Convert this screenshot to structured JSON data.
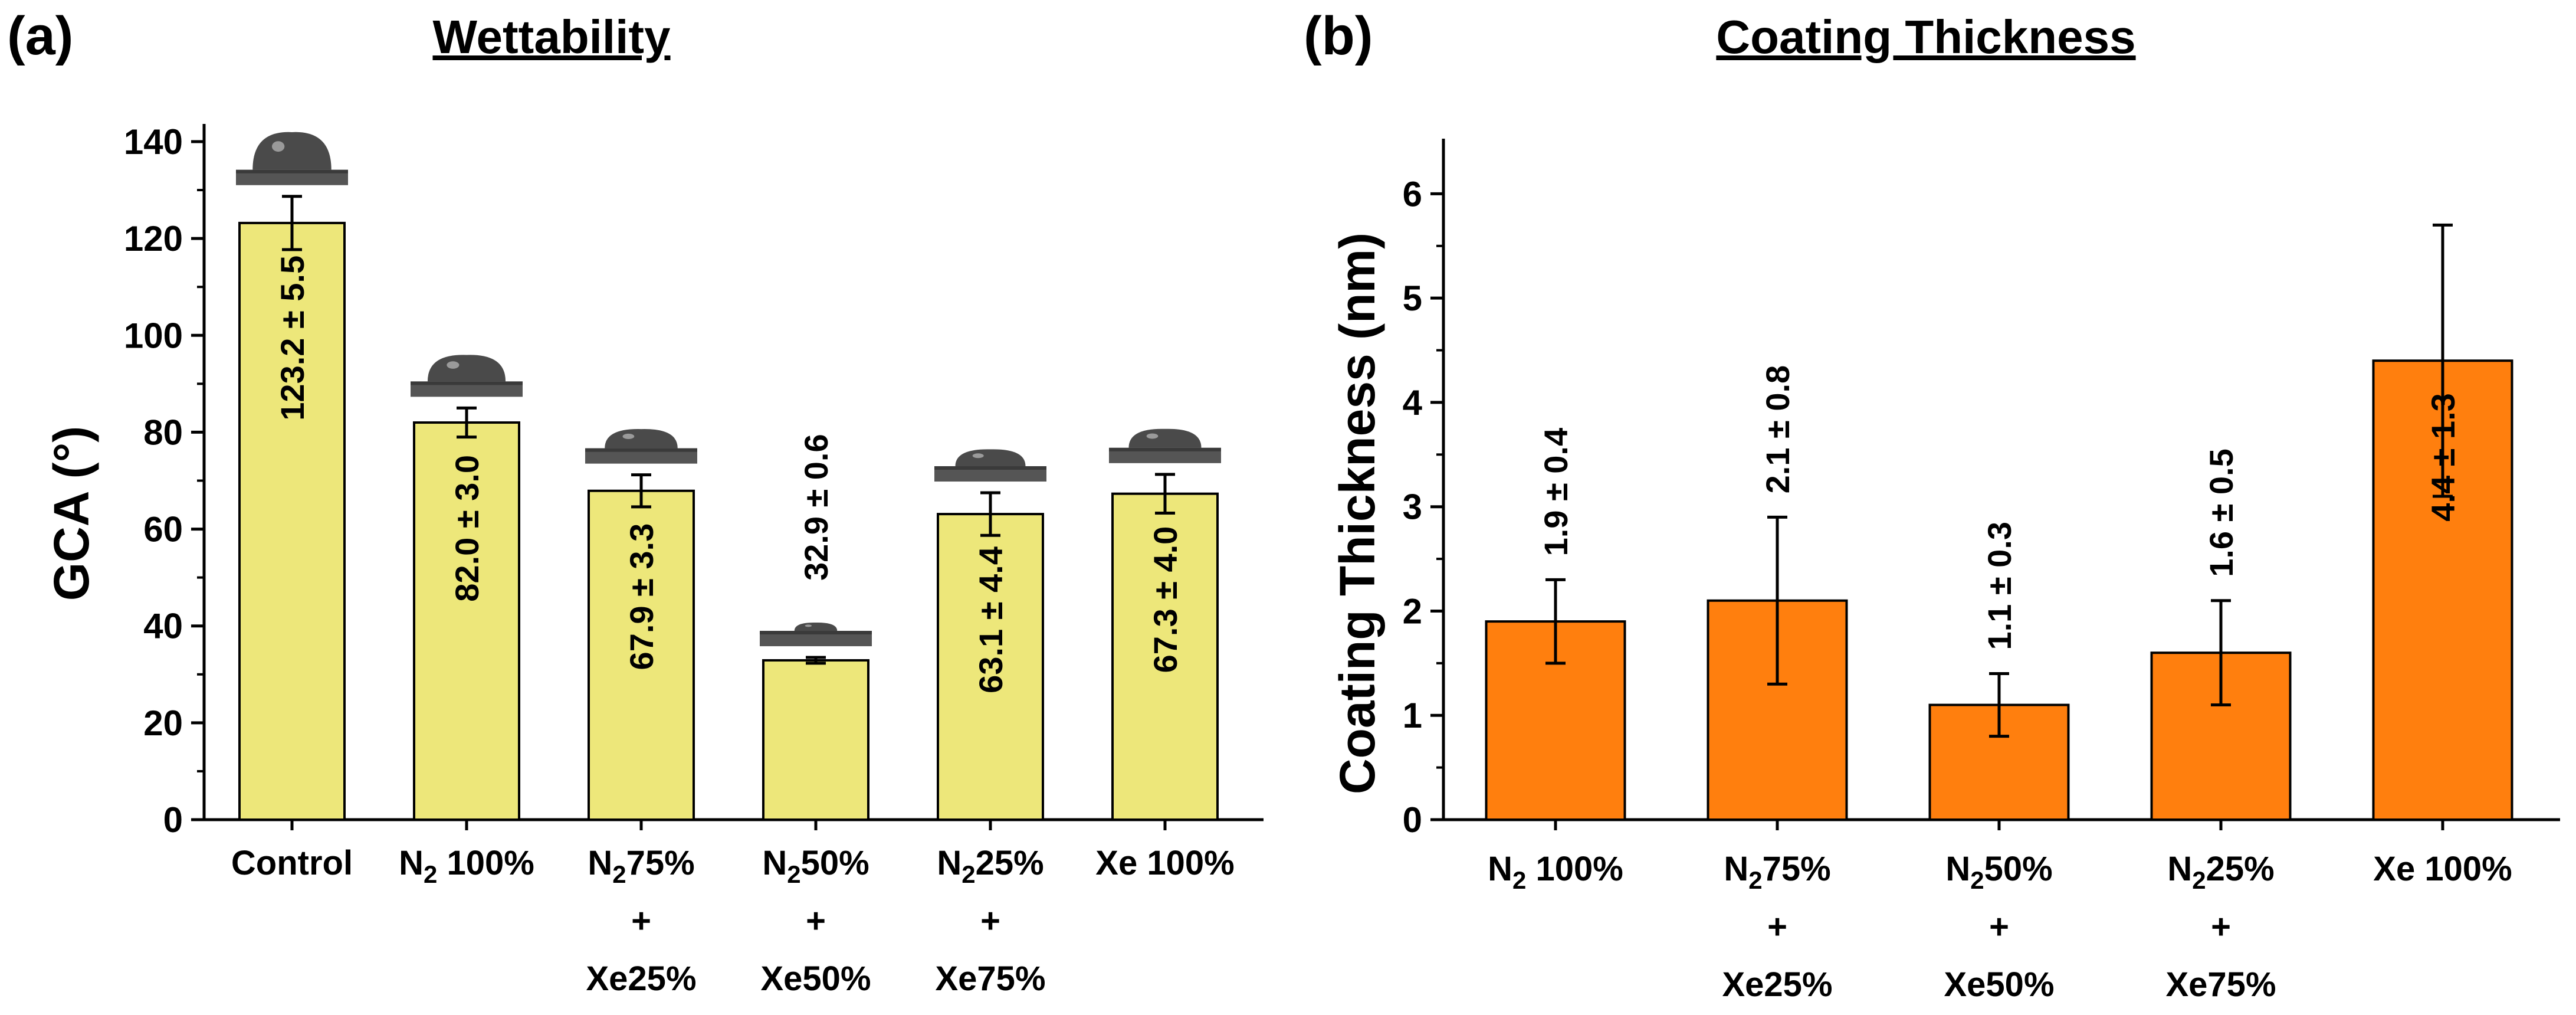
{
  "chart_data": [
    {
      "type": "bar",
      "panel_label": "(a)",
      "title": "Wettability",
      "ylabel": "GCA (°)",
      "xlabel": "",
      "ylim": [
        0,
        140
      ],
      "yticks": [
        "0",
        "20",
        "40",
        "60",
        "80",
        "100",
        "120",
        "140"
      ],
      "bar_color": "#ede77a",
      "categories": [
        {
          "lines": [
            {
              "t": "Control"
            }
          ]
        },
        {
          "lines": [
            {
              "t": "N",
              "sub": "2",
              "rest": " 100%"
            }
          ]
        },
        {
          "lines": [
            {
              "t": "N",
              "sub": "2",
              "rest": "75%"
            },
            {
              "t": "+"
            },
            {
              "t": "Xe25%"
            }
          ]
        },
        {
          "lines": [
            {
              "t": "N",
              "sub": "2",
              "rest": "50%"
            },
            {
              "t": "+"
            },
            {
              "t": "Xe50%"
            }
          ]
        },
        {
          "lines": [
            {
              "t": "N",
              "sub": "2",
              "rest": "25%"
            },
            {
              "t": "+"
            },
            {
              "t": "Xe75%"
            }
          ]
        },
        {
          "lines": [
            {
              "t": "Xe 100%"
            }
          ]
        }
      ],
      "values": [
        123.2,
        82.0,
        67.9,
        32.9,
        63.1,
        67.3
      ],
      "errors": [
        5.5,
        3.0,
        3.3,
        0.6,
        4.4,
        4.0
      ],
      "labels": [
        "123.2 ± 5.5",
        "82.0 ± 3.0",
        "67.9 ± 3.3",
        "32.9 ± 0.6",
        "63.1 ± 4.4",
        "67.3 ± 4.0"
      ],
      "label_inside": [
        true,
        true,
        true,
        false,
        true,
        true
      ],
      "droplet_images": true
    },
    {
      "type": "bar",
      "panel_label": "(b)",
      "title": "Coating Thickness",
      "ylabel": "Coating Thickness (nm)",
      "xlabel": "",
      "ylim": [
        0,
        6.5
      ],
      "yticks": [
        "0",
        "1",
        "2",
        "3",
        "4",
        "5",
        "6"
      ],
      "bar_color": "#ff7f0e",
      "categories": [
        {
          "lines": [
            {
              "t": "N",
              "sub": "2",
              "rest": " 100%"
            }
          ]
        },
        {
          "lines": [
            {
              "t": "N",
              "sub": "2",
              "rest": "75%"
            },
            {
              "t": "+"
            },
            {
              "t": "Xe25%"
            }
          ]
        },
        {
          "lines": [
            {
              "t": "N",
              "sub": "2",
              "rest": "50%"
            },
            {
              "t": "+"
            },
            {
              "t": "Xe50%"
            }
          ]
        },
        {
          "lines": [
            {
              "t": "N",
              "sub": "2",
              "rest": "25%"
            },
            {
              "t": "+"
            },
            {
              "t": "Xe75%"
            }
          ]
        },
        {
          "lines": [
            {
              "t": "Xe 100%"
            }
          ]
        }
      ],
      "values": [
        1.9,
        2.1,
        1.1,
        1.6,
        4.4
      ],
      "errors": [
        0.4,
        0.8,
        0.3,
        0.5,
        1.3
      ],
      "labels": [
        "1.9 ± 0.4",
        "2.1 ± 0.8",
        "1.1 ± 0.3",
        "1.6 ± 0.5",
        "4.4 ± 1.3"
      ],
      "label_inside": [
        false,
        false,
        false,
        false,
        true
      ],
      "droplet_images": false
    }
  ]
}
